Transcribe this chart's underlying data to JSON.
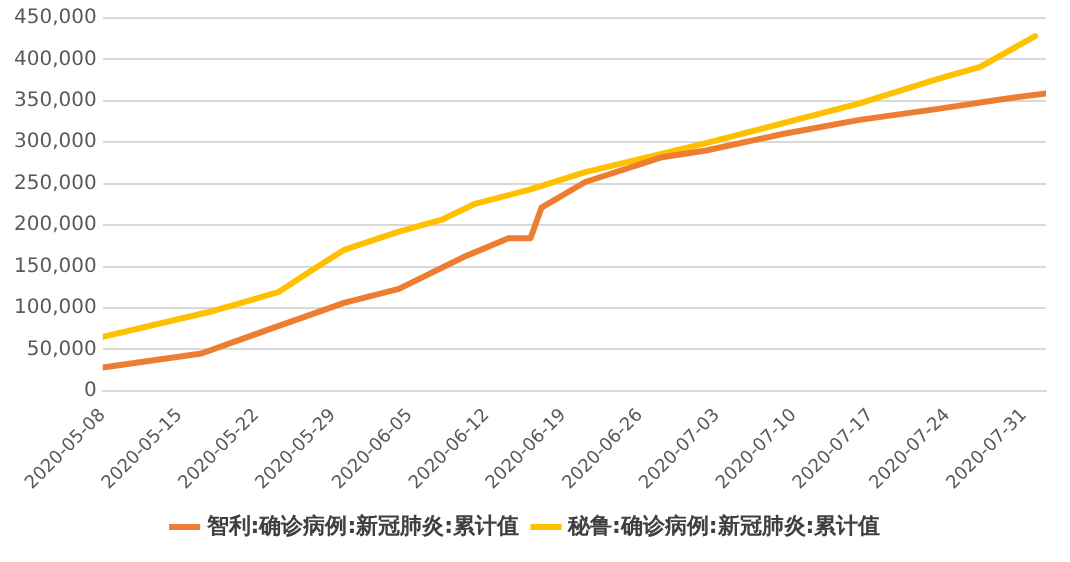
{
  "chart_data": {
    "type": "line",
    "series": [
      {
        "name": "智利:确诊病例:新冠肺炎:累计值",
        "color": "#ed7d31",
        "x": [
          "2020-05-08",
          "2020-05-17",
          "2020-05-24",
          "2020-05-30",
          "2020-06-04",
          "2020-06-10",
          "2020-06-14",
          "2020-06-16",
          "2020-06-17",
          "2020-06-21",
          "2020-06-28",
          "2020-07-02",
          "2020-07-09",
          "2020-07-16",
          "2020-07-23",
          "2020-07-29",
          "2020-08-02"
        ],
        "values": [
          28000,
          45000,
          78000,
          106000,
          123000,
          162000,
          184000,
          184000,
          221000,
          252000,
          282000,
          290000,
          310000,
          327000,
          340000,
          352000,
          359000
        ]
      },
      {
        "name": "秘鲁:确诊病例:新冠肺炎:累计值",
        "color": "#ffc000",
        "x": [
          "2020-05-08",
          "2020-05-17",
          "2020-05-18",
          "2020-05-24",
          "2020-05-27",
          "2020-05-30",
          "2020-06-04",
          "2020-06-08",
          "2020-06-11",
          "2020-06-16",
          "2020-06-21",
          "2020-07-02",
          "2020-07-16",
          "2020-07-23",
          "2020-07-27",
          "2020-08-01"
        ],
        "values": [
          65000,
          93000,
          96000,
          119000,
          145000,
          170000,
          192000,
          207000,
          226000,
          243000,
          264000,
          299000,
          347000,
          376000,
          391000,
          428000
        ]
      }
    ],
    "xlim": [
      "2020-05-08",
      "2020-08-02"
    ],
    "xticks": [
      "2020-05-08",
      "2020-05-15",
      "2020-05-22",
      "2020-05-29",
      "2020-06-05",
      "2020-06-12",
      "2020-06-19",
      "2020-06-26",
      "2020-07-03",
      "2020-07-10",
      "2020-07-17",
      "2020-07-24",
      "2020-07-31"
    ],
    "ylim": [
      0,
      450000
    ],
    "yticks": [
      0,
      {
        "value": 50000,
        "label": "50,000"
      },
      {
        "value": 100000,
        "label": "100,000"
      },
      {
        "value": 150000,
        "label": "150,000"
      },
      {
        "value": 200000,
        "label": "200,000"
      },
      {
        "value": 250000,
        "label": "250,000"
      },
      {
        "value": 300000,
        "label": "300,000"
      },
      {
        "value": 350000,
        "label": "350,000"
      },
      {
        "value": 400000,
        "label": "400,000"
      },
      {
        "value": 450000,
        "label": "450,000"
      }
    ],
    "grid": "y",
    "legend": "bottom",
    "marker": "none",
    "line_style": "solid"
  }
}
